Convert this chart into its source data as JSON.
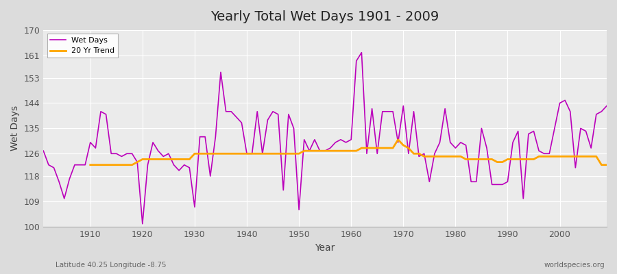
{
  "title": "Yearly Total Wet Days 1901 - 2009",
  "xlabel": "Year",
  "ylabel": "Wet Days",
  "subtitle_left": "Latitude 40.25 Longitude -8.75",
  "subtitle_right": "worldspecies.org",
  "ylim": [
    100,
    170
  ],
  "yticks": [
    100,
    109,
    118,
    126,
    135,
    144,
    153,
    161,
    170
  ],
  "wet_days_color": "#bb00bb",
  "trend_color": "#ffa500",
  "legend_wet": "Wet Days",
  "legend_trend": "20 Yr Trend",
  "years": [
    1901,
    1902,
    1903,
    1904,
    1905,
    1906,
    1907,
    1908,
    1909,
    1910,
    1911,
    1912,
    1913,
    1914,
    1915,
    1916,
    1917,
    1918,
    1919,
    1920,
    1921,
    1922,
    1923,
    1924,
    1925,
    1926,
    1927,
    1928,
    1929,
    1930,
    1931,
    1932,
    1933,
    1934,
    1935,
    1936,
    1937,
    1938,
    1939,
    1940,
    1941,
    1942,
    1943,
    1944,
    1945,
    1946,
    1947,
    1948,
    1949,
    1950,
    1951,
    1952,
    1953,
    1954,
    1955,
    1956,
    1957,
    1958,
    1959,
    1960,
    1961,
    1962,
    1963,
    1964,
    1965,
    1966,
    1967,
    1968,
    1969,
    1970,
    1971,
    1972,
    1973,
    1974,
    1975,
    1976,
    1977,
    1978,
    1979,
    1980,
    1981,
    1982,
    1983,
    1984,
    1985,
    1986,
    1987,
    1988,
    1989,
    1990,
    1991,
    1992,
    1993,
    1994,
    1995,
    1996,
    1997,
    1998,
    1999,
    2000,
    2001,
    2002,
    2003,
    2004,
    2005,
    2006,
    2007,
    2008,
    2009
  ],
  "wet_days": [
    127,
    122,
    121,
    116,
    110,
    117,
    122,
    122,
    122,
    130,
    128,
    141,
    140,
    126,
    126,
    125,
    126,
    126,
    123,
    101,
    122,
    130,
    127,
    125,
    126,
    122,
    120,
    122,
    121,
    107,
    132,
    132,
    118,
    132,
    155,
    141,
    141,
    139,
    137,
    126,
    126,
    141,
    126,
    138,
    141,
    140,
    113,
    140,
    135,
    106,
    131,
    127,
    131,
    127,
    127,
    128,
    130,
    131,
    130,
    131,
    159,
    162,
    126,
    142,
    126,
    141,
    141,
    141,
    130,
    143,
    126,
    141,
    125,
    126,
    116,
    126,
    130,
    142,
    130,
    128,
    130,
    129,
    116,
    116,
    135,
    128,
    115,
    115,
    115,
    116,
    130,
    134,
    110,
    133,
    134,
    127,
    126,
    126,
    135,
    144,
    145,
    141,
    121,
    135,
    134,
    128,
    140,
    141,
    143
  ],
  "trend_years": [
    1910,
    1911,
    1912,
    1913,
    1914,
    1915,
    1916,
    1917,
    1918,
    1919,
    1920,
    1921,
    1922,
    1923,
    1924,
    1925,
    1926,
    1927,
    1928,
    1929,
    1930,
    1931,
    1932,
    1933,
    1934,
    1935,
    1936,
    1937,
    1938,
    1939,
    1940,
    1941,
    1942,
    1943,
    1944,
    1945,
    1946,
    1947,
    1948,
    1949,
    1950,
    1951,
    1952,
    1953,
    1954,
    1955,
    1956,
    1957,
    1958,
    1959,
    1960,
    1961,
    1962,
    1963,
    1964,
    1965,
    1966,
    1967,
    1968,
    1969,
    1970,
    1971,
    1972,
    1973,
    1974,
    1975,
    1976,
    1977,
    1978,
    1979,
    1980,
    1981,
    1982,
    1983,
    1984,
    1985,
    1986,
    1987,
    1988,
    1989,
    1990,
    1991,
    1992,
    1993,
    1994,
    1995,
    1996,
    1997,
    1998,
    1999,
    2000,
    2001,
    2002,
    2003,
    2004,
    2005,
    2006,
    2007,
    2008,
    2009
  ],
  "trend_values": [
    122,
    122,
    122,
    122,
    122,
    122,
    122,
    122,
    122,
    123,
    124,
    124,
    124,
    124,
    124,
    124,
    124,
    124,
    124,
    124,
    126,
    126,
    126,
    126,
    126,
    126,
    126,
    126,
    126,
    126,
    126,
    126,
    126,
    126,
    126,
    126,
    126,
    126,
    126,
    126,
    126,
    127,
    127,
    127,
    127,
    127,
    127,
    127,
    127,
    127,
    127,
    127,
    128,
    128,
    128,
    128,
    128,
    128,
    128,
    131,
    129,
    128,
    126,
    126,
    125,
    125,
    125,
    125,
    125,
    125,
    125,
    125,
    124,
    124,
    124,
    124,
    124,
    124,
    123,
    123,
    124,
    124,
    124,
    124,
    124,
    124,
    125,
    125,
    125,
    125,
    125,
    125,
    125,
    125,
    125,
    125,
    125,
    125,
    122,
    122
  ]
}
